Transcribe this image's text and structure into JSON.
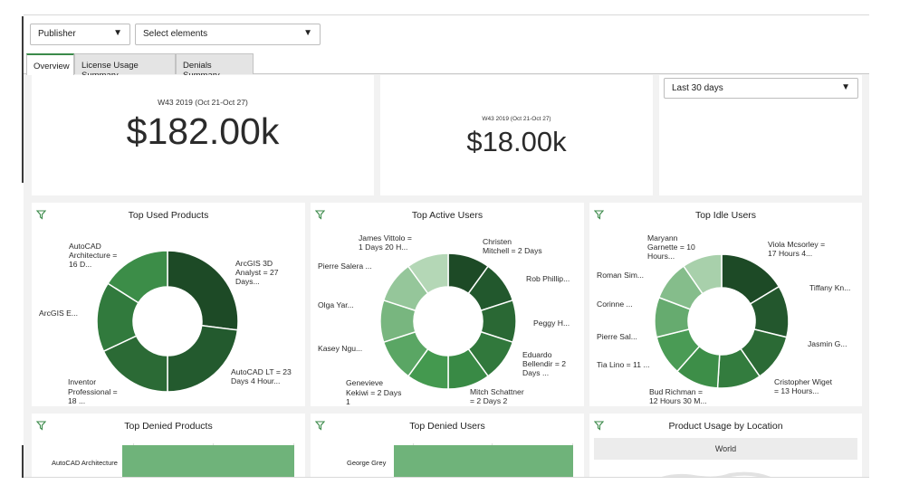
{
  "filters": {
    "publisher": "Publisher",
    "elements": "Select elements"
  },
  "tabs": [
    "Overview",
    "License Usage Summary",
    "Denials Summary"
  ],
  "kpis": {
    "first": {
      "subtitle": "W43 2019 (Oct 21-Oct 27)",
      "value": "$182.00k"
    },
    "second": {
      "subtitle": "W43 2019 (Oct 21-Oct 27)",
      "value": "$18.00k"
    },
    "period": "Last 30 days"
  },
  "colors": {
    "accent": "#3b8a4a",
    "bar": "#6fb37a"
  },
  "panels": {
    "top_used_products": {
      "title": "Top Used Products",
      "labels": [
        "AutoCAD",
        "Architecture =",
        "16 D...",
        "ArcGIS 3D",
        "Analyst = 27",
        "Days...",
        "ArcGIS E...",
        "AutoCAD LT = 23",
        "Days 4 Hour...",
        "Inventor",
        "Professional =",
        "18 ..."
      ]
    },
    "top_active_users": {
      "title": "Top Active Users",
      "labels": [
        "James Vittolo =",
        "1 Days 20 H...",
        "Christen",
        "Mitchell = 2 Days",
        "Pierre Salera ...",
        "Rob Phillip...",
        "Olga Yar...",
        "Peggy H...",
        "Kasey Ngu...",
        "Eduardo",
        "Bellendir = 2",
        "Days ...",
        "Genevieve",
        "Kekiwi = 2 Days",
        "1",
        "Mitch Schattner",
        "= 2 Days 2"
      ]
    },
    "top_idle_users": {
      "title": "Top Idle Users",
      "labels": [
        "Maryann",
        "Garnette = 10",
        "Hours...",
        "Viola Mcsorley =",
        "17 Hours 4...",
        "Roman Sim...",
        "Tiffany Kn...",
        "Corinne ...",
        "Pierre Sal...",
        "Jasmin G...",
        "Tia Lino = 11 ...",
        "Cristopher Wiget",
        "= 13 Hours...",
        "Bud Richman =",
        "12 Hours 30 M..."
      ]
    },
    "top_denied_products": {
      "title": "Top Denied Products",
      "bar_label": "AutoCAD Architecture"
    },
    "top_denied_users": {
      "title": "Top Denied Users",
      "bar_label": "George Grey"
    },
    "product_usage_by_location": {
      "title": "Product Usage by Location",
      "map_tab": "World"
    }
  }
}
